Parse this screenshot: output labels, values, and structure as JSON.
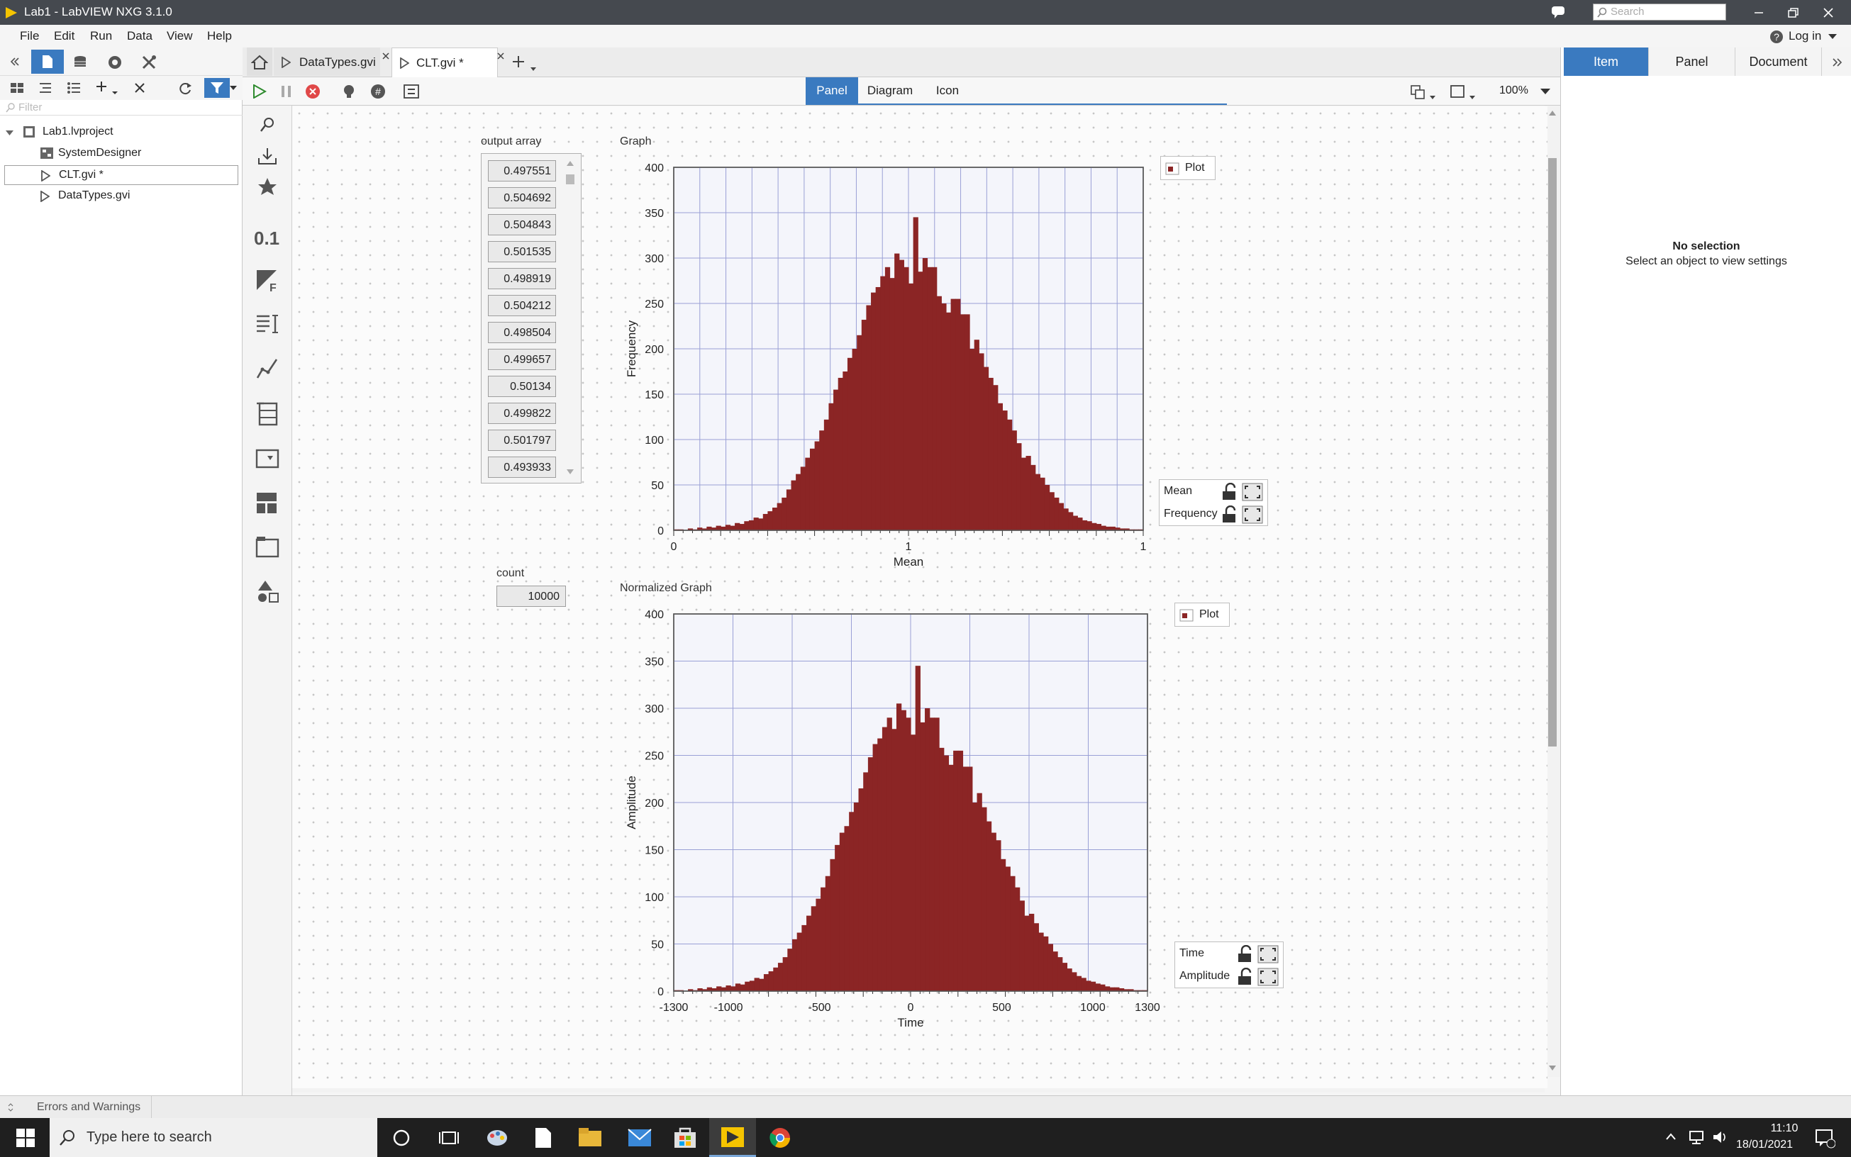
{
  "window": {
    "title": "Lab1 - LabVIEW NXG 3.1.0",
    "search_placeholder": "Search",
    "login": "Log in"
  },
  "menu": [
    "File",
    "Edit",
    "Run",
    "Data",
    "View",
    "Help"
  ],
  "project": {
    "filter_placeholder": "Filter",
    "items": [
      {
        "label": "Lab1.lvproject"
      },
      {
        "label": "SystemDesigner"
      },
      {
        "label": "CLT.gvi *"
      },
      {
        "label": "DataTypes.gvi"
      }
    ]
  },
  "tabs": [
    {
      "label": "DataTypes.gvi"
    },
    {
      "label": "CLT.gvi *"
    }
  ],
  "modes": {
    "panel": "Panel",
    "diagram": "Diagram",
    "icon": "Icon",
    "zoom": "100%"
  },
  "palette": {
    "numeric_label": "0.1"
  },
  "front_panel": {
    "output_array": {
      "label": "output array",
      "values": [
        "0.497551",
        "0.504692",
        "0.504843",
        "0.501535",
        "0.498919",
        "0.504212",
        "0.498504",
        "0.499657",
        "0.50134",
        "0.499822",
        "0.501797",
        "0.493933"
      ]
    },
    "count": {
      "label": "count",
      "value": "10000"
    },
    "graph_legend": {
      "plot": "Plot",
      "scale_x": "Mean",
      "scale_y": "Frequency"
    },
    "norm_legend": {
      "plot": "Plot",
      "scale_x": "Time",
      "scale_y": "Amplitude"
    }
  },
  "chart_data": [
    {
      "type": "bar",
      "title": "Graph",
      "xlabel": "Mean",
      "ylabel": "Frequency",
      "ylim": [
        0,
        400
      ],
      "yticks": [
        0,
        50,
        100,
        150,
        200,
        250,
        300,
        350,
        400
      ],
      "xtick_labels": [
        "0",
        "1",
        "1"
      ],
      "bar_color": "#8b2525",
      "bins": 100,
      "values": [
        1,
        1,
        0,
        2,
        1,
        3,
        2,
        4,
        3,
        5,
        4,
        6,
        5,
        8,
        7,
        10,
        11,
        14,
        13,
        18,
        21,
        25,
        30,
        36,
        45,
        55,
        62,
        70,
        80,
        90,
        98,
        110,
        122,
        140,
        155,
        168,
        175,
        190,
        200,
        215,
        232,
        248,
        262,
        268,
        280,
        290,
        278,
        305,
        298,
        290,
        272,
        345,
        285,
        300,
        290,
        290,
        258,
        250,
        240,
        255,
        255,
        238,
        238,
        200,
        210,
        195,
        180,
        168,
        160,
        140,
        132,
        122,
        110,
        96,
        80,
        82,
        72,
        62,
        58,
        50,
        42,
        36,
        30,
        24,
        20,
        16,
        14,
        11,
        10,
        8,
        7,
        5,
        4,
        4,
        3,
        2,
        2,
        1,
        1,
        1
      ],
      "grid": true
    },
    {
      "type": "bar",
      "title": "Normalized Graph",
      "xlabel": "Time",
      "ylabel": "Amplitude",
      "ylim": [
        0,
        400
      ],
      "xlim": [
        -1300,
        1300
      ],
      "yticks": [
        0,
        50,
        100,
        150,
        200,
        250,
        300,
        350,
        400
      ],
      "xticks": [
        -1300,
        -1000,
        -500,
        0,
        500,
        1000,
        1300
      ],
      "bar_color": "#8b2525",
      "bins": 100,
      "values": [
        1,
        1,
        0,
        2,
        1,
        3,
        2,
        4,
        3,
        5,
        4,
        6,
        5,
        8,
        7,
        10,
        11,
        14,
        13,
        18,
        21,
        25,
        30,
        36,
        45,
        55,
        62,
        70,
        80,
        90,
        98,
        110,
        122,
        140,
        155,
        168,
        175,
        190,
        200,
        215,
        232,
        248,
        262,
        268,
        280,
        290,
        278,
        305,
        298,
        290,
        272,
        345,
        285,
        300,
        290,
        290,
        258,
        250,
        240,
        255,
        255,
        238,
        238,
        200,
        210,
        195,
        180,
        168,
        160,
        140,
        132,
        122,
        110,
        96,
        80,
        82,
        72,
        62,
        58,
        50,
        42,
        36,
        30,
        24,
        20,
        16,
        14,
        11,
        10,
        8,
        7,
        5,
        4,
        4,
        3,
        2,
        2,
        1,
        1,
        1
      ],
      "grid": true
    }
  ],
  "properties": {
    "tabs": [
      "Item",
      "Panel",
      "Document"
    ],
    "no_selection": "No selection",
    "hint": "Select an object to view settings"
  },
  "status": {
    "errors": "Errors and Warnings"
  },
  "taskbar": {
    "search": "Type here to search",
    "time": "11:10",
    "date": "18/01/2021"
  }
}
